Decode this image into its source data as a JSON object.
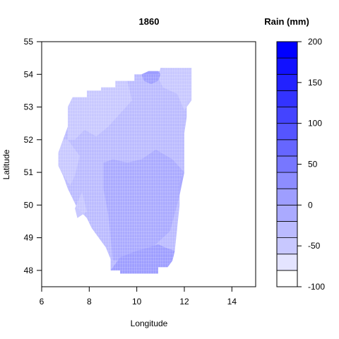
{
  "chart_data": {
    "type": "heatmap",
    "title": "1860",
    "xlabel": "Longitude",
    "ylabel": "Latitude",
    "xlim": [
      6,
      15
    ],
    "ylim": [
      47.5,
      55
    ],
    "xticks": [
      6,
      8,
      10,
      12,
      14
    ],
    "yticks": [
      48,
      49,
      50,
      51,
      52,
      53,
      54,
      55
    ],
    "legend": {
      "title": "Rain (mm)",
      "range": [
        -100,
        200
      ],
      "ticks": [
        -100,
        -50,
        0,
        50,
        100,
        150,
        200
      ],
      "breaks": [
        -100,
        -80,
        -60,
        -40,
        -20,
        0,
        20,
        40,
        60,
        80,
        100,
        120,
        140,
        160,
        180,
        200
      ],
      "colors": [
        "#FFFFFF",
        "#E4E4FF",
        "#C8C8FF",
        "#BBBBFF",
        "#AAAAFF",
        "#9E9EFF",
        "#8D8DFF",
        "#7777FF",
        "#6666FF",
        "#5555FF",
        "#4444FF",
        "#3333FF",
        "#2222FF",
        "#1111FF",
        "#0000FF"
      ]
    },
    "regions": [
      {
        "value": -30,
        "polygon": [
          [
            9.9,
            47.9
          ],
          [
            9.3,
            47.9
          ],
          [
            9.3,
            48.0
          ],
          [
            8.9,
            48.0
          ],
          [
            8.9,
            48.35
          ],
          [
            8.7,
            48.7
          ],
          [
            8.3,
            49.1
          ],
          [
            8.1,
            49.3
          ],
          [
            7.9,
            49.6
          ],
          [
            7.5,
            49.9
          ],
          [
            7.3,
            50.2
          ],
          [
            7.1,
            50.5
          ],
          [
            6.9,
            50.9
          ],
          [
            6.7,
            51.2
          ],
          [
            6.7,
            51.6
          ],
          [
            6.9,
            52.0
          ],
          [
            7.1,
            52.4
          ],
          [
            7.1,
            53.0
          ],
          [
            7.3,
            53.3
          ],
          [
            7.9,
            53.3
          ],
          [
            7.9,
            53.5
          ],
          [
            8.5,
            53.5
          ],
          [
            8.5,
            53.6
          ],
          [
            9.1,
            53.6
          ],
          [
            9.1,
            53.8
          ],
          [
            9.9,
            53.8
          ],
          [
            9.9,
            54.0
          ],
          [
            10.9,
            54.0
          ],
          [
            10.9,
            54.1
          ],
          [
            11.1,
            54.1
          ],
          [
            11.1,
            54.2
          ],
          [
            12.3,
            54.2
          ],
          [
            12.3,
            53.2
          ],
          [
            12.1,
            53.2
          ],
          [
            12.1,
            52.7
          ],
          [
            12.0,
            52.2
          ],
          [
            12.0,
            51.0
          ],
          [
            11.8,
            50.7
          ],
          [
            11.8,
            50.0
          ],
          [
            11.7,
            49.3
          ],
          [
            11.6,
            48.6
          ],
          [
            11.5,
            48.3
          ],
          [
            11.3,
            48.1
          ],
          [
            10.9,
            48.1
          ],
          [
            10.9,
            47.9
          ]
        ]
      },
      {
        "value": -60,
        "polygon": [
          [
            7.3,
            53.3
          ],
          [
            7.9,
            53.3
          ],
          [
            7.9,
            53.5
          ],
          [
            8.5,
            53.5
          ],
          [
            8.5,
            53.6
          ],
          [
            9.1,
            53.6
          ],
          [
            9.1,
            53.8
          ],
          [
            9.6,
            53.8
          ],
          [
            9.8,
            53.2
          ],
          [
            9.3,
            52.8
          ],
          [
            8.8,
            52.4
          ],
          [
            8.3,
            52.1
          ],
          [
            7.8,
            52.3
          ],
          [
            7.4,
            52.0
          ],
          [
            7.1,
            52.0
          ],
          [
            7.1,
            53.0
          ]
        ]
      },
      {
        "value": -60,
        "polygon": [
          [
            6.7,
            51.6
          ],
          [
            6.9,
            52.0
          ],
          [
            7.1,
            52.0
          ],
          [
            7.6,
            51.5
          ],
          [
            7.4,
            50.9
          ],
          [
            7.2,
            50.6
          ],
          [
            7.0,
            50.8
          ],
          [
            6.7,
            51.2
          ]
        ]
      },
      {
        "value": -60,
        "polygon": [
          [
            7.7,
            50.4
          ],
          [
            7.4,
            49.9
          ],
          [
            7.5,
            49.6
          ],
          [
            7.9,
            49.8
          ]
        ]
      },
      {
        "value": -60,
        "polygon": [
          [
            11.0,
            54.2
          ],
          [
            12.3,
            54.2
          ],
          [
            12.3,
            53.2
          ],
          [
            12.0,
            52.9
          ],
          [
            11.7,
            53.4
          ],
          [
            11.1,
            53.6
          ],
          [
            10.9,
            53.9
          ]
        ]
      },
      {
        "value": -10,
        "polygon": [
          [
            8.6,
            51.3
          ],
          [
            8.6,
            50.5
          ],
          [
            8.8,
            49.7
          ],
          [
            8.9,
            49.0
          ],
          [
            9.0,
            48.3
          ],
          [
            9.9,
            48.3
          ],
          [
            10.5,
            48.6
          ],
          [
            11.4,
            49.2
          ],
          [
            11.8,
            50.3
          ],
          [
            12.0,
            51.0
          ],
          [
            11.5,
            51.4
          ],
          [
            10.8,
            51.7
          ],
          [
            10.2,
            51.4
          ],
          [
            9.6,
            51.3
          ],
          [
            9.0,
            51.4
          ]
        ]
      },
      {
        "value": 0,
        "polygon": [
          [
            8.9,
            48.0
          ],
          [
            9.3,
            48.0
          ],
          [
            9.3,
            47.9
          ],
          [
            9.9,
            47.9
          ],
          [
            9.9,
            47.9
          ],
          [
            10.9,
            47.9
          ],
          [
            10.9,
            48.1
          ],
          [
            11.3,
            48.1
          ],
          [
            11.5,
            48.3
          ],
          [
            11.6,
            48.6
          ],
          [
            11.2,
            48.7
          ],
          [
            10.9,
            48.8
          ],
          [
            10.5,
            48.7
          ],
          [
            10.0,
            48.6
          ],
          [
            9.3,
            48.4
          ]
        ]
      },
      {
        "value": 10,
        "polygon": [
          [
            10.2,
            54.0
          ],
          [
            10.3,
            53.8
          ],
          [
            10.6,
            53.7
          ],
          [
            10.9,
            53.8
          ],
          [
            11.0,
            54.0
          ],
          [
            10.9,
            54.1
          ],
          [
            10.5,
            54.1
          ]
        ]
      }
    ]
  }
}
